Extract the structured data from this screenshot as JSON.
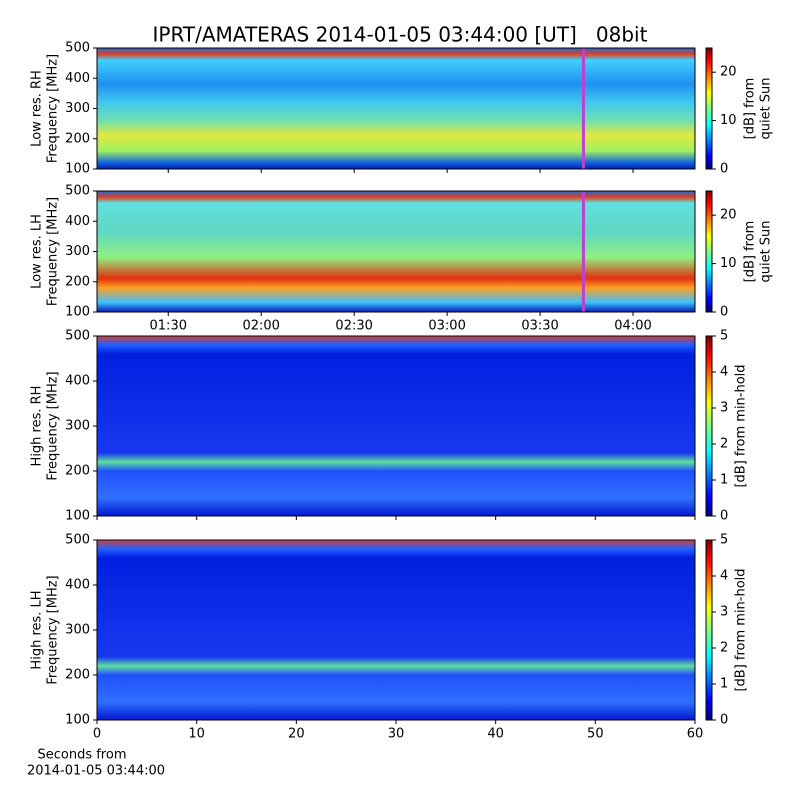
{
  "chart_data": [
    {
      "type": "spectrogram",
      "title": "IPRT/AMATERAS 2014-01-05 03:44:00 [UT]   08bit",
      "ylabel": [
        "Low res. RH",
        "Frequency [MHz]"
      ],
      "ylim": [
        100,
        500
      ],
      "yticks": [
        100,
        200,
        300,
        400,
        500
      ],
      "xlim": [
        "01:07",
        "04:20"
      ],
      "xticks": [
        "01:30",
        "02:00",
        "02:30",
        "03:00",
        "03:30",
        "04:00"
      ],
      "xticklabels": false,
      "marker_x": "03:44",
      "marker_color": "#c040d0",
      "colorbar_label": [
        "[dB] from",
        "quiet Sun"
      ],
      "clim": [
        0,
        25
      ],
      "cticks": [
        0,
        10,
        20
      ],
      "colormap": "jet"
    },
    {
      "type": "spectrogram",
      "ylabel": [
        "Low res. LH",
        "Frequency [MHz]"
      ],
      "ylim": [
        100,
        500
      ],
      "yticks": [
        100,
        200,
        300,
        400,
        500
      ],
      "xlim": [
        "01:07",
        "04:20"
      ],
      "xticks": [
        "01:30",
        "02:00",
        "02:30",
        "03:00",
        "03:30",
        "04:00"
      ],
      "xticklabels": true,
      "marker_x": "03:44",
      "marker_color": "#c040d0",
      "colorbar_label": [
        "[dB] from",
        "quiet Sun"
      ],
      "clim": [
        0,
        25
      ],
      "cticks": [
        0,
        10,
        20
      ],
      "colormap": "jet"
    },
    {
      "type": "spectrogram",
      "ylabel": [
        "High res. RH",
        "Frequency [MHz]"
      ],
      "ylim": [
        100,
        500
      ],
      "yticks": [
        100,
        200,
        300,
        400,
        500
      ],
      "xlim": [
        0,
        60
      ],
      "xticks": [
        0,
        10,
        20,
        30,
        40,
        50,
        60
      ],
      "xticklabels": false,
      "colorbar_label": [
        "[dB] from min-hold"
      ],
      "clim": [
        0,
        5
      ],
      "cticks": [
        0,
        1,
        2,
        3,
        4,
        5
      ],
      "colormap": "jet"
    },
    {
      "type": "spectrogram",
      "ylabel": [
        "High res. LH",
        "Frequency [MHz]"
      ],
      "ylim": [
        100,
        500
      ],
      "yticks": [
        100,
        200,
        300,
        400,
        500
      ],
      "xlim": [
        0,
        60
      ],
      "xticks": [
        0,
        10,
        20,
        30,
        40,
        50,
        60
      ],
      "xticklabels": true,
      "xlabel": [
        "Seconds from",
        "2014-01-05 03:44:00"
      ],
      "colorbar_label": [
        "[dB] from min-hold"
      ],
      "clim": [
        0,
        5
      ],
      "cticks": [
        0,
        1,
        2,
        3,
        4,
        5
      ],
      "colormap": "jet"
    }
  ]
}
